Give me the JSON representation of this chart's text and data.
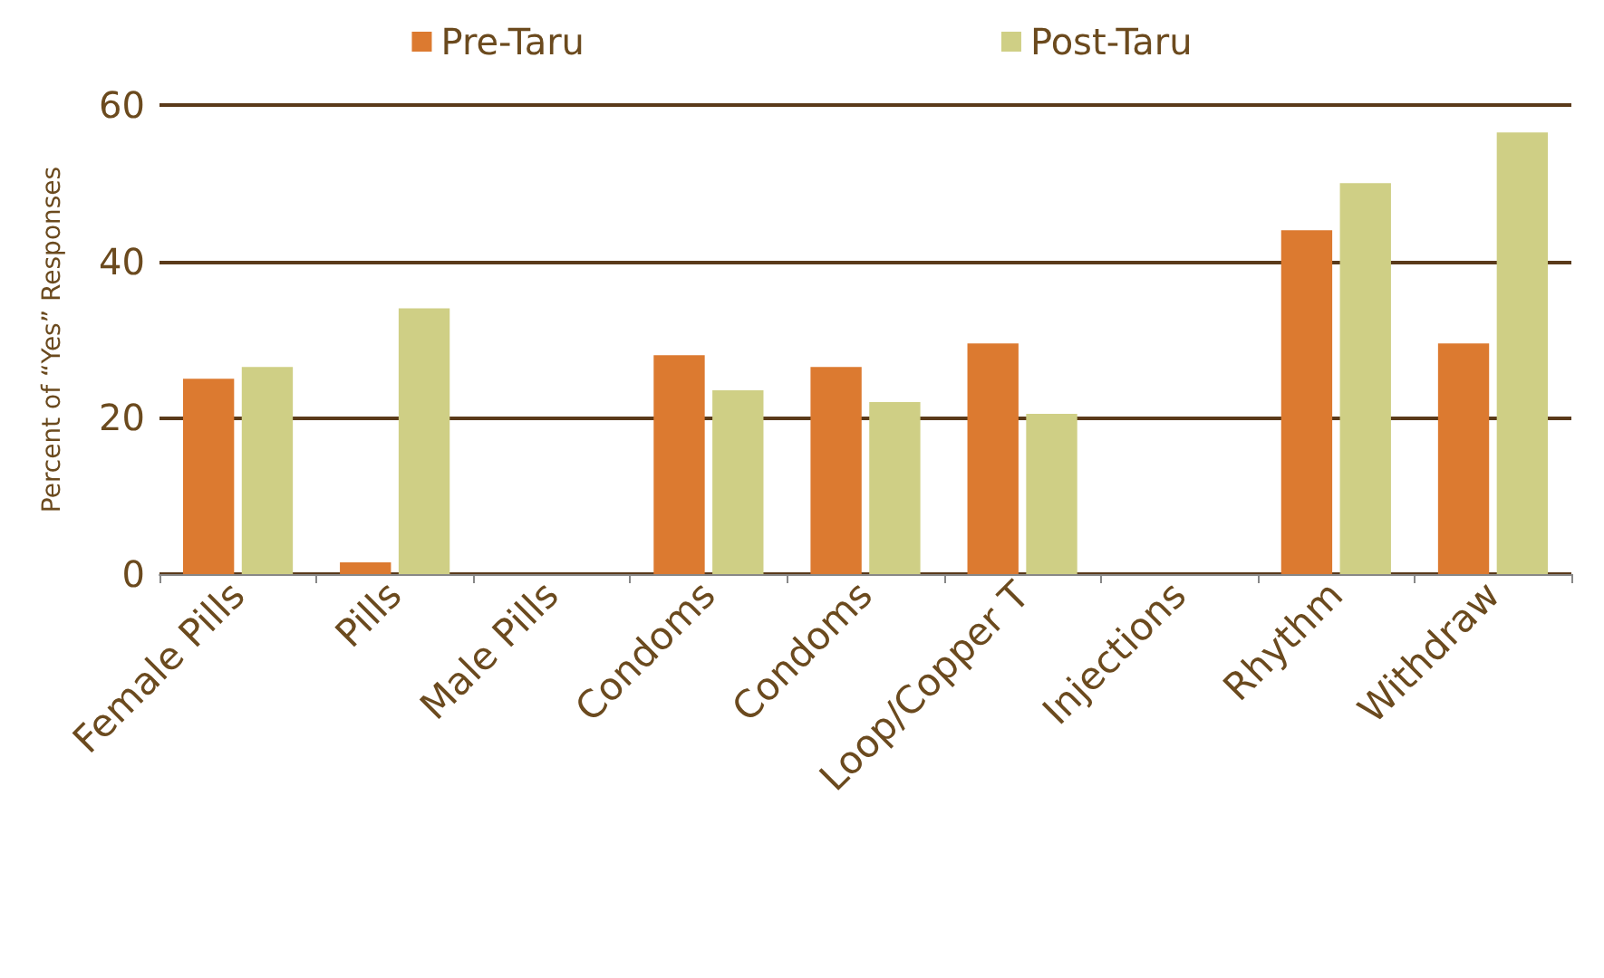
{
  "chart_data": {
    "type": "bar",
    "ylabel": "Percent of “Yes” Responses",
    "categories": [
      "Female Pills",
      "Pills",
      "Male Pills",
      "Condoms",
      "Condoms",
      "Loop/Copper T",
      "Injections",
      "Rhythm",
      "Withdraw"
    ],
    "series": [
      {
        "name": "Pre-Taru",
        "color": "#dc7a30",
        "values": [
          25,
          1.5,
          0,
          28,
          26.5,
          29.5,
          0,
          44,
          29.5
        ]
      },
      {
        "name": "Post-Taru",
        "color": "#cfcf85",
        "values": [
          26.5,
          34,
          0,
          23.5,
          22,
          20.5,
          0,
          50,
          56.5
        ]
      }
    ],
    "ylim": [
      0,
      60
    ],
    "yticks": [
      0,
      20,
      40,
      60
    ],
    "grid": "y",
    "legend": "top"
  }
}
